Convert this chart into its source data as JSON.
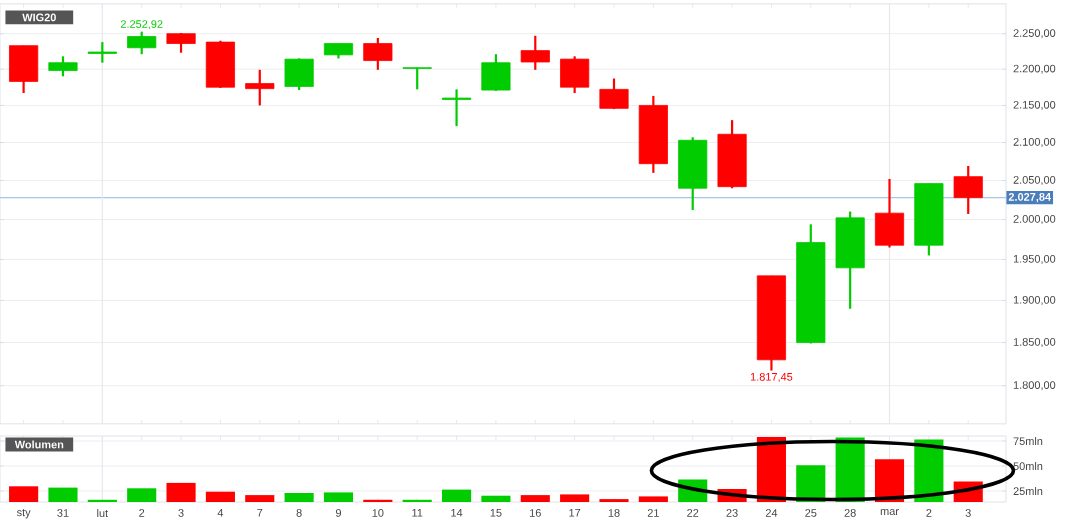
{
  "chart_data": [
    {
      "type": "candlestick",
      "title": "WIG20",
      "categories": [
        "sty",
        "31",
        "lut",
        "2",
        "3",
        "4",
        "7",
        "8",
        "9",
        "10",
        "11",
        "14",
        "15",
        "16",
        "17",
        "18",
        "21",
        "22",
        "23",
        "24",
        "25",
        "28",
        "mar",
        "2",
        "3"
      ],
      "ohlc": [
        [
          2233,
          2233,
          2167,
          2183
        ],
        [
          2198,
          2218,
          2190,
          2209
        ],
        [
          2222,
          2238,
          2209,
          2224
        ],
        [
          2230,
          2252.92,
          2221,
          2246
        ],
        [
          2250,
          2251,
          2223,
          2236
        ],
        [
          2238,
          2240,
          2174,
          2175
        ],
        [
          2180,
          2199,
          2150,
          2173
        ],
        [
          2176,
          2215,
          2171,
          2214
        ],
        [
          2220,
          2236,
          2215,
          2236
        ],
        [
          2236,
          2244,
          2199,
          2212
        ],
        [
          2201,
          2202,
          2172,
          2202
        ],
        [
          2158,
          2172,
          2122,
          2160
        ],
        [
          2171,
          2221,
          2170,
          2209
        ],
        [
          2226,
          2247,
          2199,
          2210
        ],
        [
          2214,
          2218,
          2167,
          2175
        ],
        [
          2172,
          2187,
          2145,
          2146
        ],
        [
          2150,
          2163,
          2060,
          2072
        ],
        [
          2040,
          2107,
          2012,
          2103
        ],
        [
          2111,
          2130,
          2040,
          2042
        ],
        [
          1930,
          1930,
          1817.45,
          1830
        ],
        [
          1850,
          1994,
          1849,
          1971
        ],
        [
          1940,
          2010,
          1890,
          2002
        ],
        [
          2008,
          2052,
          1965,
          1968
        ],
        [
          1968,
          2046,
          1955,
          2046
        ],
        [
          2055,
          2069,
          2007,
          2027.84
        ]
      ],
      "colors": [
        "#ff0000",
        "#00cc00",
        "#00cc00",
        "#00cc00",
        "#ff0000",
        "#ff0000",
        "#ff0000",
        "#00cc00",
        "#00cc00",
        "#ff0000",
        "#00cc00",
        "#00cc00",
        "#00cc00",
        "#ff0000",
        "#ff0000",
        "#ff0000",
        "#ff0000",
        "#00cc00",
        "#ff0000",
        "#ff0000",
        "#00cc00",
        "#00cc00",
        "#ff0000",
        "#00cc00",
        "#ff0000"
      ],
      "ylim": [
        1757,
        2293
      ],
      "log": "y",
      "grid": "y",
      "tick_labels": "y",
      "yticks": [
        {
          "value": 1800,
          "label": "1.800,00"
        },
        {
          "value": 1850,
          "label": "1.850,00"
        },
        {
          "value": 1900,
          "label": "1.900,00"
        },
        {
          "value": 1950,
          "label": "1.950,00"
        },
        {
          "value": 2000,
          "label": "2.000,00"
        },
        {
          "value": 2050,
          "label": "2.050,00"
        },
        {
          "value": 2100,
          "label": "2.100,00"
        },
        {
          "value": 2150,
          "label": "2.150,00"
        },
        {
          "value": 2200,
          "label": "2.200,00"
        },
        {
          "value": 2250,
          "label": "2.250,00"
        }
      ],
      "ref_lines": [
        {
          "axis": "y",
          "value": 2027.84,
          "label": "2.027,84",
          "color": "#a8c4e8"
        },
        {
          "axis": "x",
          "value": "lut",
          "color": "#e6e8ee"
        },
        {
          "axis": "x",
          "value": "mar",
          "color": "#e6e8ee"
        }
      ],
      "annotations": [
        {
          "text": "2.252,92",
          "x": "2",
          "y": 2252.92
        },
        {
          "text": "1.817,45",
          "x": "24",
          "y": 1817.45
        }
      ]
    },
    {
      "type": "bar",
      "title": "Wolumen",
      "categories": [
        "sty",
        "31",
        "lut",
        "2",
        "3",
        "4",
        "7",
        "8",
        "9",
        "10",
        "11",
        "14",
        "15",
        "16",
        "17",
        "18",
        "21",
        "22",
        "23",
        "24",
        "25",
        "28",
        "mar",
        "2",
        "3"
      ],
      "values": [
        29.7,
        28.4,
        16.2,
        27.7,
        33.1,
        24.3,
        20.9,
        23,
        23.6,
        16.2,
        16.2,
        26.4,
        20.3,
        20.9,
        21.6,
        16.9,
        19.6,
        36.5,
        27,
        79,
        50.7,
        78.4,
        56.8,
        76.4,
        34.5
      ],
      "colors": [
        "#ff0000",
        "#00cc00",
        "#00cc00",
        "#00cc00",
        "#ff0000",
        "#ff0000",
        "#ff0000",
        "#00cc00",
        "#00cc00",
        "#ff0000",
        "#00cc00",
        "#00cc00",
        "#00cc00",
        "#ff0000",
        "#ff0000",
        "#ff0000",
        "#ff0000",
        "#00cc00",
        "#ff0000",
        "#ff0000",
        "#00cc00",
        "#00cc00",
        "#ff0000",
        "#00cc00",
        "#ff0000"
      ],
      "ylim": [
        14,
        80
      ],
      "grid": "y",
      "yticks": [
        {
          "value": 25,
          "label": "25mln"
        },
        {
          "value": 50,
          "label": "50mln"
        },
        {
          "value": 75,
          "label": "75mln"
        }
      ],
      "ref_lines": [
        {
          "axis": "x",
          "value": "lut",
          "color": "#e6e8ee"
        },
        {
          "axis": "x",
          "value": "mar",
          "color": "#e6e8ee"
        }
      ]
    }
  ]
}
